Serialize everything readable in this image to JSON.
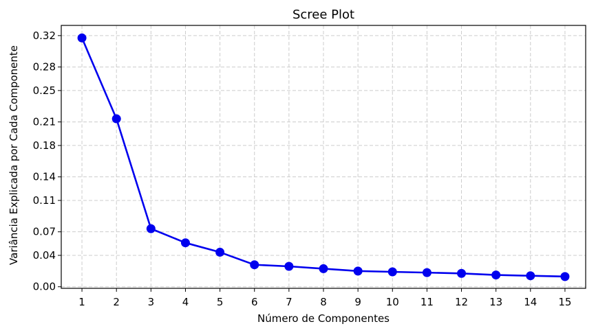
{
  "chart_data": {
    "type": "line",
    "title": "Scree Plot",
    "xlabel": "Número de Componentes",
    "ylabel": "Variância Explicada por Cada Componente",
    "x": [
      1,
      2,
      3,
      4,
      5,
      6,
      7,
      8,
      9,
      10,
      11,
      12,
      13,
      14,
      15
    ],
    "series": [
      {
        "values": [
          0.317,
          0.214,
          0.074,
          0.056,
          0.044,
          0.028,
          0.026,
          0.023,
          0.02,
          0.019,
          0.018,
          0.017,
          0.015,
          0.014,
          0.013
        ]
      }
    ],
    "xlim": [
      0.4,
      15.6
    ],
    "ylim": [
      -0.002,
      0.333
    ],
    "x_ticks": [
      "1",
      "2",
      "3",
      "4",
      "5",
      "6",
      "7",
      "8",
      "9",
      "10",
      "11",
      "12",
      "13",
      "14",
      "15"
    ],
    "y_ticks": [
      {
        "value": 0.0,
        "label": "0.00"
      },
      {
        "value": 0.04,
        "label": "0.04"
      },
      {
        "value": 0.07,
        "label": "0.07"
      },
      {
        "value": 0.11,
        "label": "0.11"
      },
      {
        "value": 0.14,
        "label": "0.14"
      },
      {
        "value": 0.18,
        "label": "0.18"
      },
      {
        "value": 0.21,
        "label": "0.21"
      },
      {
        "value": 0.25,
        "label": "0.25"
      },
      {
        "value": 0.28,
        "label": "0.28"
      },
      {
        "value": 0.32,
        "label": "0.32"
      }
    ],
    "grid": true,
    "line_color": "#0000ee",
    "marker_color": "#0000ee",
    "grid_color": "#cccccc"
  }
}
